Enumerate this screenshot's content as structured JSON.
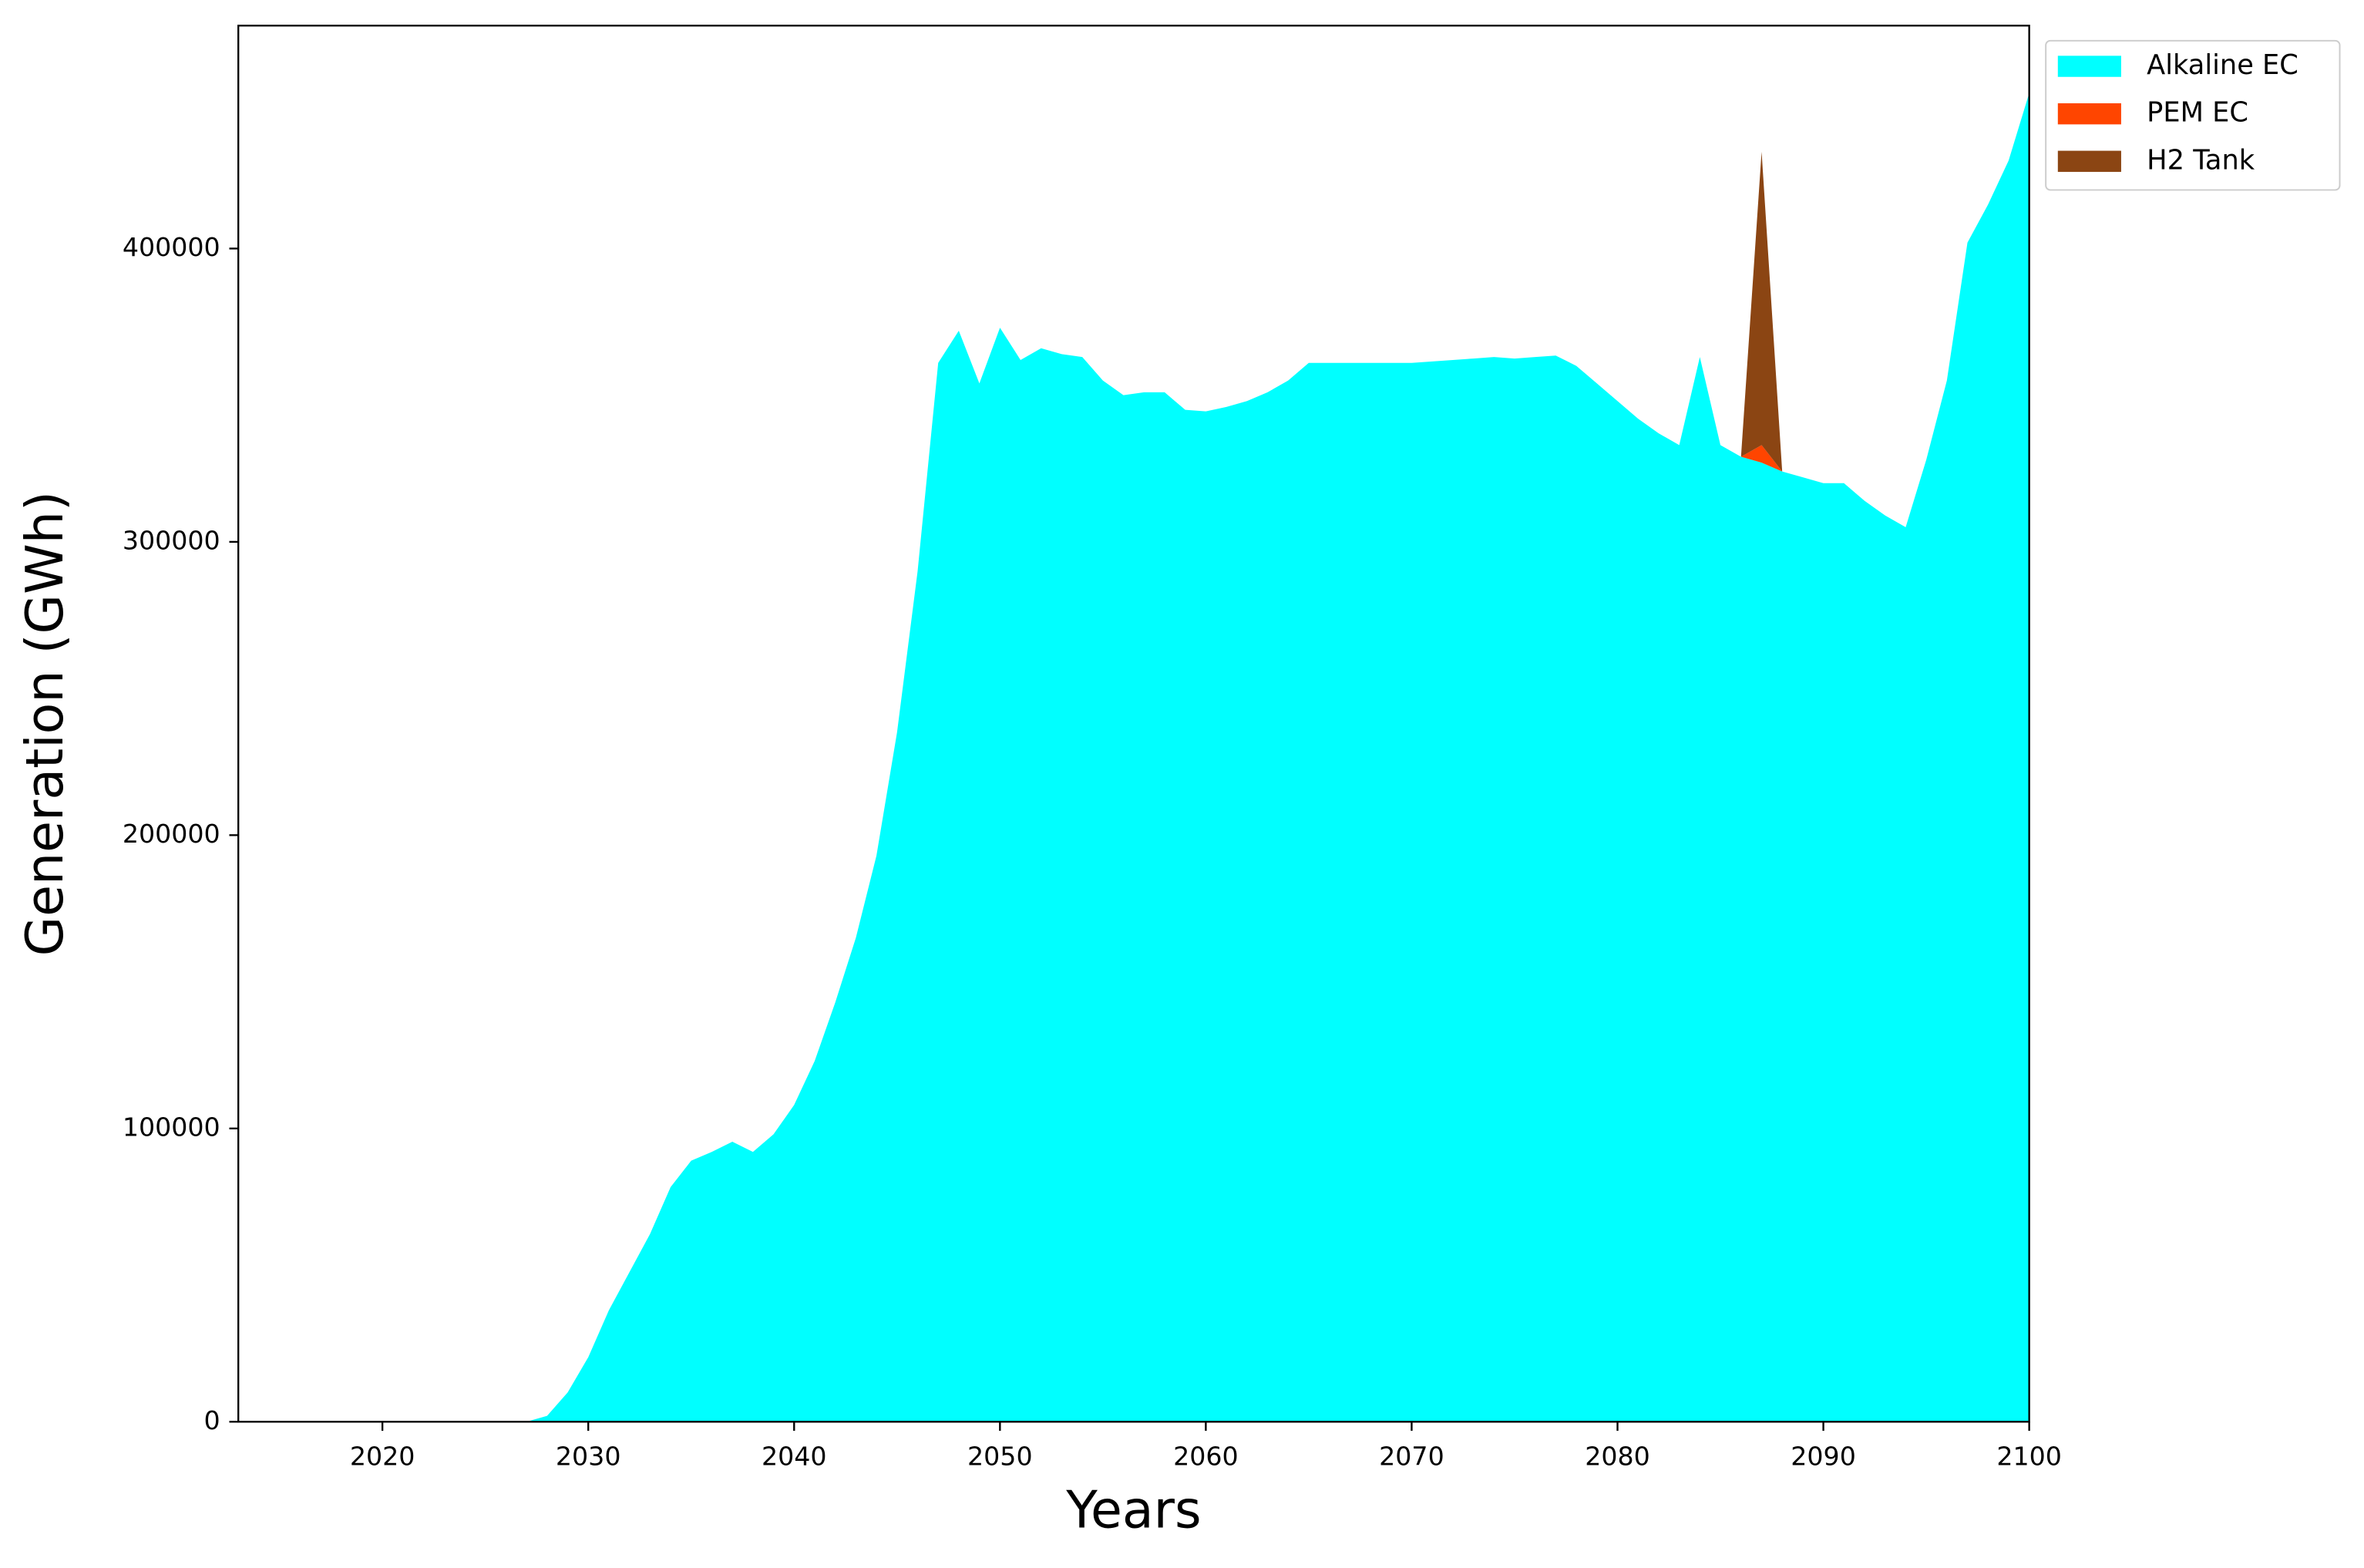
{
  "chart_data": {
    "type": "stacked-area",
    "xlabel": "Years",
    "ylabel": "Generation (GWh)",
    "x": [
      2013,
      2014,
      2015,
      2016,
      2017,
      2018,
      2019,
      2020,
      2021,
      2022,
      2023,
      2024,
      2025,
      2026,
      2027,
      2028,
      2029,
      2030,
      2031,
      2032,
      2033,
      2034,
      2035,
      2036,
      2037,
      2038,
      2039,
      2040,
      2041,
      2042,
      2043,
      2044,
      2045,
      2046,
      2047,
      2048,
      2049,
      2050,
      2051,
      2052,
      2053,
      2054,
      2055,
      2056,
      2057,
      2058,
      2059,
      2060,
      2061,
      2062,
      2063,
      2064,
      2065,
      2066,
      2067,
      2068,
      2069,
      2070,
      2071,
      2072,
      2073,
      2074,
      2075,
      2076,
      2077,
      2078,
      2079,
      2080,
      2081,
      2082,
      2083,
      2084,
      2085,
      2086,
      2087,
      2088,
      2089,
      2090,
      2091,
      2092,
      2093,
      2094,
      2095,
      2096,
      2097,
      2098,
      2099,
      2100
    ],
    "series": [
      {
        "name": "Alkaline EC",
        "color": "#00ffff",
        "values": [
          0,
          0,
          0,
          0,
          0,
          0,
          0,
          0,
          0,
          0,
          0,
          0,
          0,
          0,
          0,
          2000,
          10000,
          22000,
          38000,
          51000,
          64000,
          80000,
          89000,
          92000,
          95500,
          92000,
          98000,
          108000,
          123000,
          143000,
          165000,
          193000,
          235000,
          290000,
          361000,
          372000,
          354000,
          373000,
          362000,
          366000,
          364000,
          363000,
          355000,
          350000,
          351000,
          351000,
          345000,
          344500,
          346000,
          348000,
          351000,
          355000,
          361000,
          361000,
          361000,
          361000,
          361000,
          361000,
          361500,
          362000,
          362500,
          363000,
          362500,
          363000,
          363500,
          360000,
          354000,
          348000,
          342000,
          337000,
          333000,
          363000,
          333000,
          329000,
          327000,
          324000,
          322000,
          320000,
          320000,
          314000,
          309000,
          305000,
          328000,
          355000,
          402000,
          415000,
          430000,
          453000
        ]
      },
      {
        "name": "PEM EC",
        "color": "#ff4500",
        "values": [
          0,
          0,
          0,
          0,
          0,
          0,
          0,
          0,
          0,
          0,
          0,
          0,
          0,
          0,
          0,
          0,
          0,
          0,
          0,
          0,
          0,
          0,
          0,
          0,
          0,
          0,
          0,
          0,
          0,
          0,
          0,
          0,
          0,
          0,
          0,
          0,
          0,
          0,
          0,
          0,
          0,
          0,
          0,
          0,
          0,
          0,
          0,
          0,
          0,
          0,
          0,
          0,
          0,
          0,
          0,
          0,
          0,
          0,
          0,
          0,
          0,
          0,
          0,
          0,
          0,
          0,
          0,
          0,
          0,
          0,
          0,
          0,
          0,
          0,
          6000,
          0,
          0,
          0,
          0,
          0,
          0,
          0,
          0,
          0,
          0,
          0,
          0,
          0
        ]
      },
      {
        "name": "H2 Tank",
        "color": "#8b4513",
        "values": [
          0,
          0,
          0,
          0,
          0,
          0,
          0,
          0,
          0,
          0,
          0,
          0,
          0,
          0,
          0,
          0,
          0,
          0,
          0,
          0,
          0,
          0,
          0,
          0,
          0,
          0,
          0,
          0,
          0,
          0,
          0,
          0,
          0,
          0,
          0,
          0,
          0,
          0,
          0,
          0,
          0,
          0,
          0,
          0,
          0,
          0,
          0,
          0,
          0,
          0,
          0,
          0,
          0,
          0,
          0,
          0,
          0,
          0,
          0,
          0,
          0,
          0,
          0,
          0,
          0,
          0,
          0,
          0,
          0,
          0,
          0,
          0,
          0,
          0,
          100000,
          0,
          0,
          0,
          0,
          0,
          0,
          0,
          0,
          0,
          0,
          0,
          0,
          0
        ]
      }
    ],
    "xlim": [
      2013,
      2100
    ],
    "ylim": [
      0,
      476000
    ],
    "xticks": [
      2020,
      2030,
      2040,
      2050,
      2060,
      2070,
      2080,
      2090,
      2100
    ],
    "yticks": [
      0,
      100000,
      200000,
      300000,
      400000
    ],
    "legend": "upper-right-outside"
  }
}
